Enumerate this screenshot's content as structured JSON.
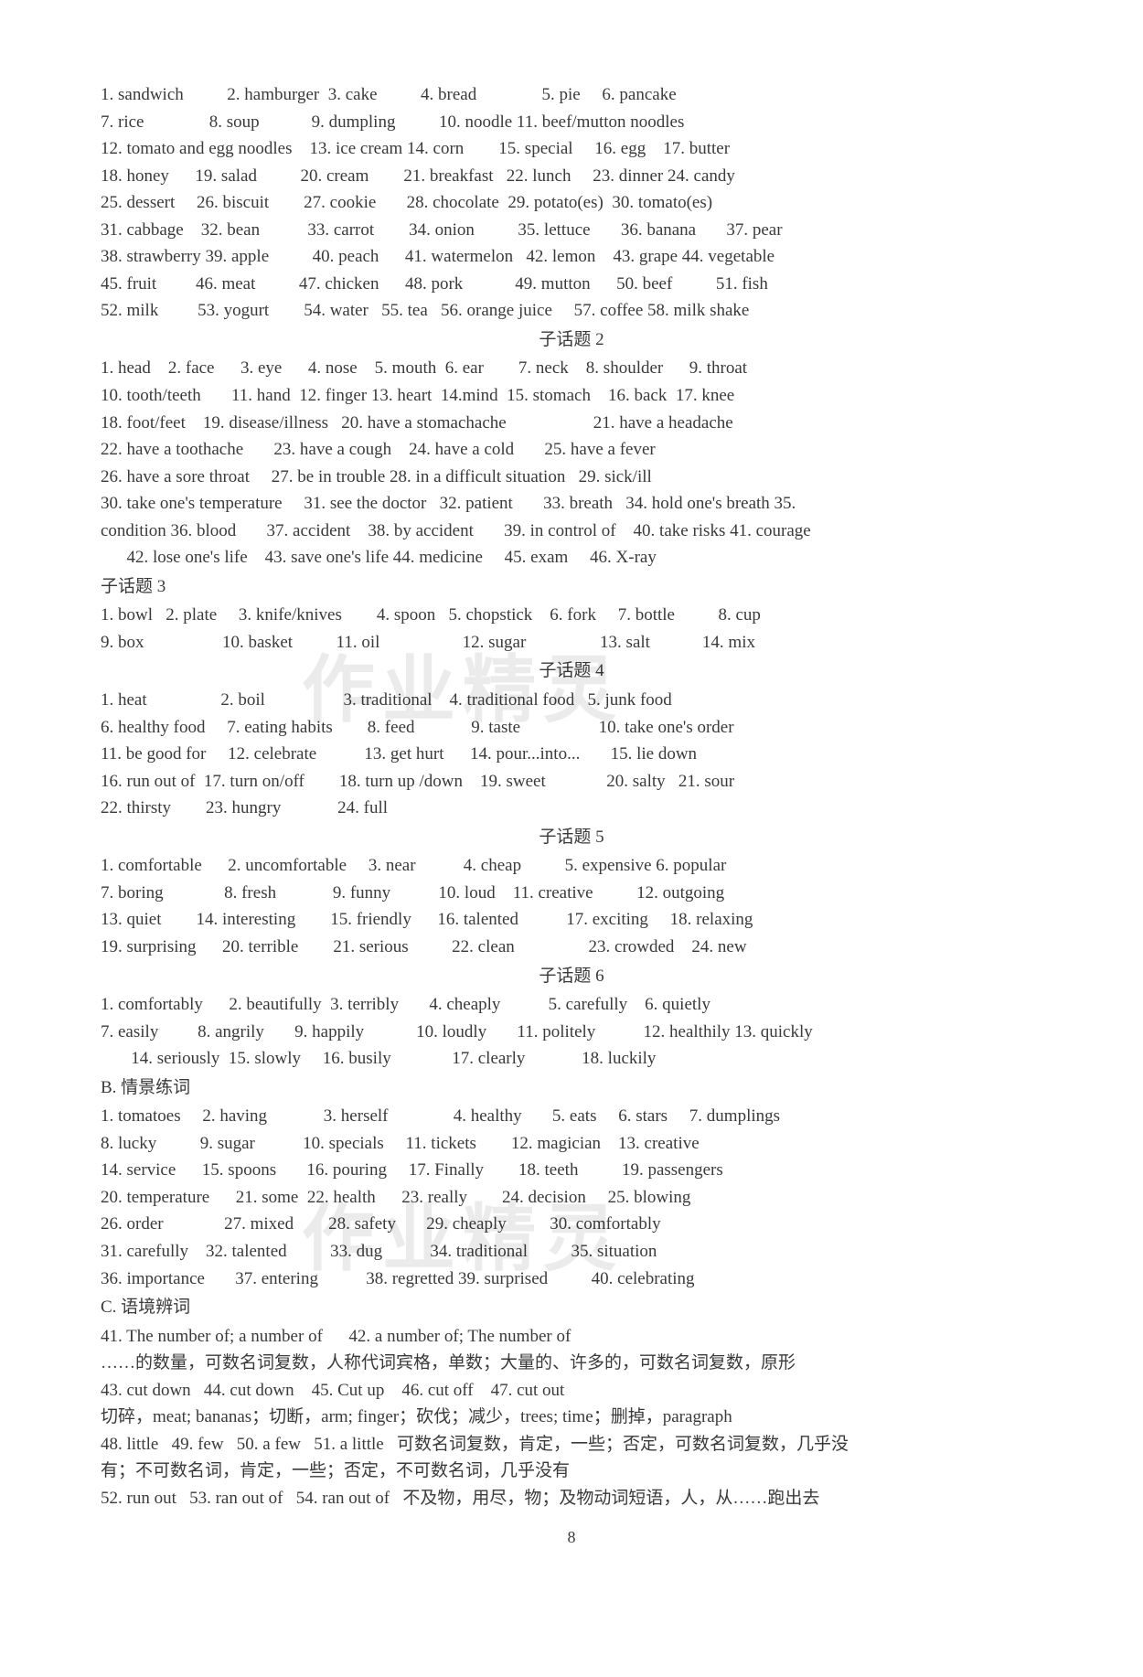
{
  "sections": [
    {
      "lines": [
        "1. sandwich          2. hamburger  3. cake          4. bread               5. pie     6. pancake",
        "7. rice               8. soup            9. dumpling          10. noodle 11. beef/mutton noodles",
        "12. tomato and egg noodles    13. ice cream 14. corn        15. special     16. egg    17. butter",
        "18. honey      19. salad          20. cream        21. breakfast   22. lunch     23. dinner 24. candy",
        "25. dessert     26. biscuit        27. cookie       28. chocolate  29. potato(es)  30. tomato(es)",
        "31. cabbage    32. bean           33. carrot        34. onion          35. lettuce       36. banana       37. pear",
        "38. strawberry 39. apple          40. peach      41. watermelon   42. lemon    43. grape 44. vegetable",
        "45. fruit         46. meat          47. chicken      48. pork            49. mutton      50. beef          51. fish",
        "52. milk         53. yogurt        54. water   55. tea   56. orange juice     57. coffee 58. milk shake"
      ]
    },
    {
      "title": "子话题 2",
      "lines": [
        "1. head    2. face      3. eye      4. nose    5. mouth  6. ear        7. neck    8. shoulder      9. throat",
        "10. tooth/teeth       11. hand  12. finger 13. heart  14.mind  15. stomach    16. back  17. knee",
        "18. foot/feet    19. disease/illness   20. have a stomachache                    21. have a headache",
        "22. have a toothache       23. have a cough    24. have a cold       25. have a fever",
        "26. have a sore throat     27. be in trouble 28. in a difficult situation   29. sick/ill",
        "30. take one's temperature     31. see the doctor   32. patient       33. breath   34. hold one's breath 35.",
        "condition 36. blood       37. accident    38. by accident       39. in control of    40. take risks 41. courage",
        "      42. lose one's life    43. save one's life 44. medicine     45. exam     46. X-ray"
      ]
    },
    {
      "titleLeft": "子话题 3",
      "lines": [
        "1. bowl   2. plate     3. knife/knives        4. spoon   5. chopstick    6. fork     7. bottle          8. cup",
        "9. box                  10. basket          11. oil                   12. sugar                 13. salt            14. mix"
      ]
    },
    {
      "title": "子话题 4",
      "lines": [
        "1. heat                 2. boil                  3. traditional    4. traditional food   5. junk food",
        "6. healthy food     7. eating habits        8. feed             9. taste                  10. take one's order",
        "11. be good for     12. celebrate           13. get hurt      14. pour...into...       15. lie down",
        "16. run out of  17. turn on/off        18. turn up /down    19. sweet              20. salty   21. sour",
        "22. thirsty        23. hungry             24. full"
      ]
    },
    {
      "title": "子话题 5",
      "lines": [
        "1. comfortable      2. uncomfortable     3. near           4. cheap          5. expensive 6. popular",
        "7. boring              8. fresh             9. funny           10. loud    11. creative          12. outgoing",
        "13. quiet        14. interesting        15. friendly      16. talented           17. exciting     18. relaxing",
        "19. surprising      20. terrible        21. serious          22. clean                 23. crowded    24. new"
      ]
    },
    {
      "title": "子话题 6",
      "lines": [
        "1. comfortably      2. beautifully  3. terribly       4. cheaply           5. carefully    6. quietly",
        "7. easily         8. angrily       9. happily            10. loudly       11. politely           12. healthily 13. quickly",
        "       14. seriously  15. slowly     16. busily              17. clearly             18. luckily"
      ]
    },
    {
      "titleLeft": "B. 情景练词",
      "lines": [
        "1. tomatoes     2. having             3. herself               4. healthy       5. eats     6. stars     7. dumplings",
        "8. lucky          9. sugar           10. specials     11. tickets        12. magician    13. creative",
        "14. service      15. spoons       16. pouring     17. Finally        18. teeth          19. passengers",
        "20. temperature      21. some  22. health      23. really        24. decision     25. blowing",
        "26. order              27. mixed        28. safety       29. cheaply          30. comfortably",
        "31. carefully    32. talented          33. dug           34. traditional          35. situation",
        "36. importance       37. entering           38. regretted 39. surprised          40. celebrating"
      ]
    },
    {
      "titleLeft": "C. 语境辨词",
      "lines": [
        "41. The number of; a number of      42. a number of; The number of",
        "……的数量，可数名词复数，人称代词宾格，单数；大量的、许多的，可数名词复数，原形",
        "43. cut down   44. cut down    45. Cut up    46. cut off    47. cut out",
        "切碎，meat; bananas；切断，arm; finger；砍伐；减少，trees; time；删掉，paragraph",
        "48. little   49. few   50. a few   51. a little   可数名词复数，肯定，一些；否定，可数名词复数，几乎没",
        "有；不可数名词，肯定，一些；否定，不可数名词，几乎没有",
        "52. run out   53. ran out of   54. ran out of   不及物，用尽，物；及物动词短语，人，从……跑出去"
      ]
    }
  ],
  "watermark_text": "作业精灵",
  "page_number": "8"
}
